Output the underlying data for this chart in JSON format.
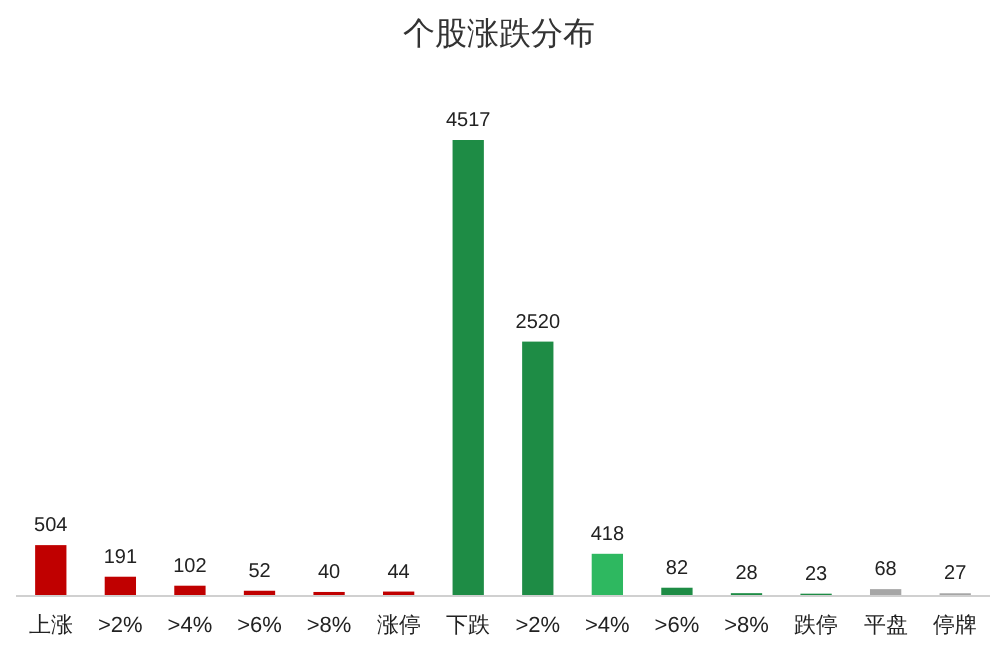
{
  "chart_data": {
    "type": "bar",
    "title": "个股涨跌分布",
    "categories": [
      "上涨",
      ">2%",
      ">4%",
      ">6%",
      ">8%",
      "涨停",
      "下跌",
      ">2%",
      ">4%",
      ">6%",
      ">8%",
      "跌停",
      "平盘",
      "停牌"
    ],
    "values": [
      504,
      191,
      102,
      52,
      40,
      44,
      4517,
      2520,
      418,
      82,
      28,
      23,
      68,
      27
    ],
    "colors": [
      "#c00000",
      "#c00000",
      "#c00000",
      "#c00000",
      "#c00000",
      "#c00000",
      "#1e8c45",
      "#1e8c45",
      "#2eb860",
      "#1e8c45",
      "#1e8c45",
      "#1e8c45",
      "#a6a6a6",
      "#a6a6a6"
    ],
    "data_labels": true,
    "ylim": [
      0,
      4517
    ]
  }
}
